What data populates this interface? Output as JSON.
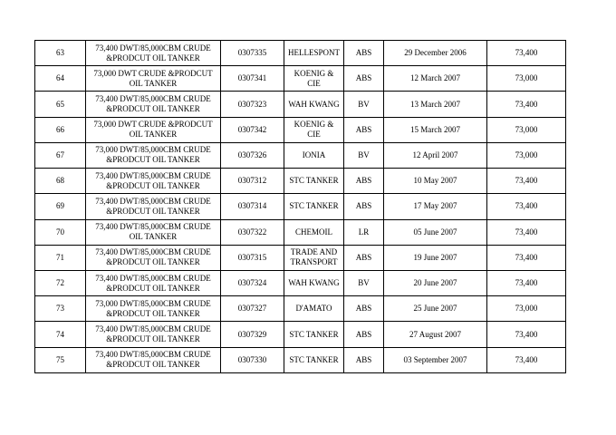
{
  "page": {
    "background_color": "#ffffff",
    "text_color": "#000000",
    "border_color": "#000000"
  },
  "table": {
    "rows": [
      {
        "no": "63",
        "description": "73,400 DWT/85,000CBM CRUDE &PRODCUT OIL TANKER",
        "yard_no": "0307335",
        "owner": "HELLESPONT",
        "class": "ABS",
        "date": "29 December 2006",
        "dwt": "73,400"
      },
      {
        "no": "64",
        "description": "73,000 DWT CRUDE &PRODCUT OIL TANKER",
        "yard_no": "0307341",
        "owner": "KOENIG & CIE",
        "class": "ABS",
        "date": "12 March 2007",
        "dwt": "73,000"
      },
      {
        "no": "65",
        "description": "73,400 DWT/85,000CBM CRUDE &PRODCUT OIL TANKER",
        "yard_no": "0307323",
        "owner": "WAH KWANG",
        "class": "BV",
        "date": "13 March 2007",
        "dwt": "73,400"
      },
      {
        "no": "66",
        "description": "73,000 DWT CRUDE &PRODCUT OIL TANKER",
        "yard_no": "0307342",
        "owner": "KOENIG & CIE",
        "class": "ABS",
        "date": "15 March 2007",
        "dwt": "73,000"
      },
      {
        "no": "67",
        "description": "73,000 DWT/85,000CBM CRUDE &PRODCUT OIL TANKER",
        "yard_no": "0307326",
        "owner": "IONIA",
        "class": "BV",
        "date": "12 April 2007",
        "dwt": "73,000"
      },
      {
        "no": "68",
        "description": "73,400 DWT/85,000CBM CRUDE &PRODCUT OIL TANKER",
        "yard_no": "0307312",
        "owner": "STC TANKER",
        "class": "ABS",
        "date": "10 May 2007",
        "dwt": "73,400"
      },
      {
        "no": "69",
        "description": "73,400 DWT/85,000CBM CRUDE &PRODCUT OIL TANKER",
        "yard_no": "0307314",
        "owner": "STC TANKER",
        "class": "ABS",
        "date": "17 May 2007",
        "dwt": "73,400"
      },
      {
        "no": "70",
        "description": "73,400 DWT/85,000CBM CRUDE  OIL TANKER",
        "yard_no": "0307322",
        "owner": "CHEMOIL",
        "class": "LR",
        "date": "05 June 2007",
        "dwt": "73,400"
      },
      {
        "no": "71",
        "description": "73,400 DWT/85,000CBM CRUDE &PRODCUT OIL TANKER",
        "yard_no": "0307315",
        "owner": "TRADE AND TRANSPORT",
        "class": "ABS",
        "date": "19 June 2007",
        "dwt": "73,400"
      },
      {
        "no": "72",
        "description": "73,400 DWT/85,000CBM CRUDE &PRODCUT OIL TANKER",
        "yard_no": "0307324",
        "owner": "WAH KWANG",
        "class": "BV",
        "date": "20 June 2007",
        "dwt": "73,400"
      },
      {
        "no": "73",
        "description": "73,000 DWT/85,000CBM CRUDE &PRODCUT OIL TANKER",
        "yard_no": "0307327",
        "owner": "D'AMATO",
        "class": "ABS",
        "date": "25 June 2007",
        "dwt": "73,000"
      },
      {
        "no": "74",
        "description": "73,400 DWT/85,000CBM CRUDE &PRODCUT OIL TANKER",
        "yard_no": "0307329",
        "owner": "STC TANKER",
        "class": "ABS",
        "date": "27 August 2007",
        "dwt": "73,400"
      },
      {
        "no": "75",
        "description": "73,400 DWT/85,000CBM CRUDE &PRODCUT OIL TANKER",
        "yard_no": "0307330",
        "owner": "STC TANKER",
        "class": "ABS",
        "date": "03 September 2007",
        "dwt": "73,400"
      }
    ]
  }
}
